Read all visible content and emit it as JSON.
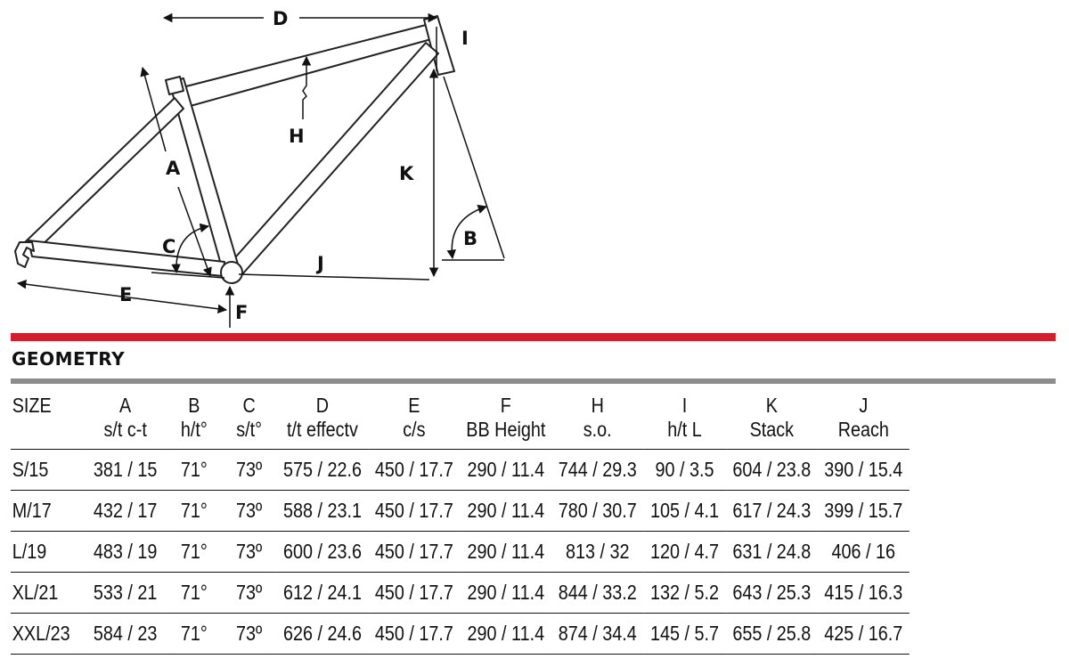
{
  "diagram": {
    "labels": {
      "A": "A",
      "B": "B",
      "C": "C",
      "D": "D",
      "E": "E",
      "F": "F",
      "H": "H",
      "I": "I",
      "J": "J",
      "K": "K"
    }
  },
  "section_title": "GEOMETRY",
  "table": {
    "size_header": "SIZE",
    "columns": [
      {
        "letter": "A",
        "sub": "s/t c-t"
      },
      {
        "letter": "B",
        "sub": "h/t°"
      },
      {
        "letter": "C",
        "sub": "s/t°"
      },
      {
        "letter": "D",
        "sub": "t/t effectv"
      },
      {
        "letter": "E",
        "sub": "c/s"
      },
      {
        "letter": "F",
        "sub": "BB Height"
      },
      {
        "letter": "H",
        "sub": "s.o."
      },
      {
        "letter": "I",
        "sub": "h/t L"
      },
      {
        "letter": "K",
        "sub": "Stack"
      },
      {
        "letter": "J",
        "sub": "Reach"
      }
    ],
    "rows": [
      {
        "size": "S/15",
        "cells": [
          "381 / 15",
          "71°",
          "73º",
          "575 / 22.6",
          "450 / 17.7",
          "290 / 11.4",
          "744 / 29.3",
          "90 / 3.5",
          "604 / 23.8",
          "390 / 15.4"
        ]
      },
      {
        "size": "M/17",
        "cells": [
          "432 / 17",
          "71°",
          "73º",
          "588 / 23.1",
          "450 / 17.7",
          "290 / 11.4",
          "780 / 30.7",
          "105 / 4.1",
          "617 / 24.3",
          "399 / 15.7"
        ]
      },
      {
        "size": "L/19",
        "cells": [
          "483 / 19",
          "71°",
          "73º",
          "600 / 23.6",
          "450 / 17.7",
          "290 / 11.4",
          "813 / 32",
          "120 / 4.7",
          "631 / 24.8",
          "406 / 16"
        ]
      },
      {
        "size": "XL/21",
        "cells": [
          "533 / 21",
          "71°",
          "73º",
          "612 / 24.1",
          "450 / 17.7",
          "290 / 11.4",
          "844 / 33.2",
          "132 / 5.2",
          "643 / 25.3",
          "415 / 16.3"
        ]
      },
      {
        "size": "XXL/23",
        "cells": [
          "584 / 23",
          "71°",
          "73º",
          "626 / 24.6",
          "450 / 17.7",
          "290 / 11.4",
          "874 / 34.4",
          "145 / 5.7",
          "655 / 25.8",
          "425 / 16.7"
        ]
      }
    ]
  }
}
